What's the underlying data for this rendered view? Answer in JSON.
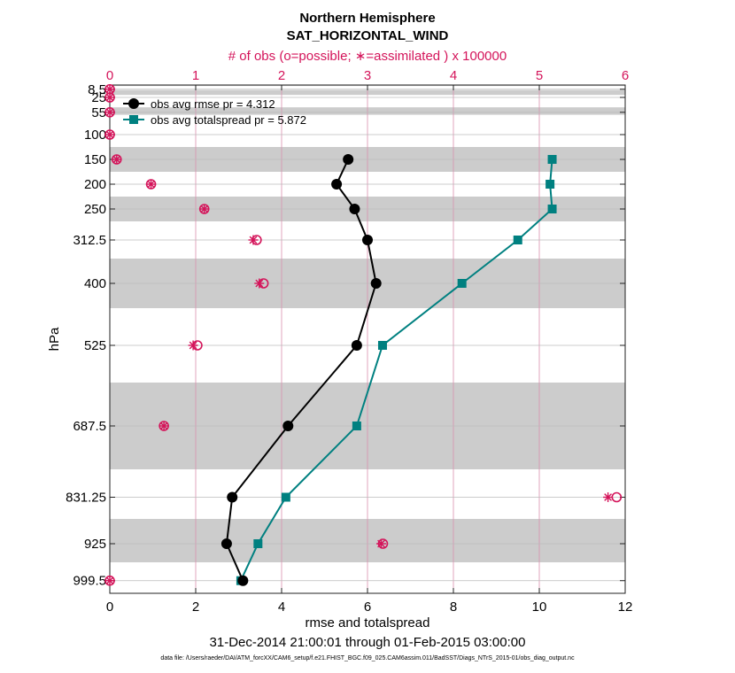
{
  "colors": {
    "rmse": "#000000",
    "spread": "#008080",
    "obs": "#d4145a",
    "band": "#cccccc",
    "grid_v": "#d98fae",
    "grid_h": "#bbbbbb"
  },
  "chart_data": {
    "type": "line",
    "title": "Northern Hemisphere",
    "subtitle": "SAT_HORIZONTAL_WIND",
    "top_axis_label": "# of obs (o=possible; ∗=assimilated ) x 100000",
    "xlabel": "rmse and totalspread",
    "ylabel": "hPa",
    "date_range": "31-Dec-2014 21:00:01 through 01-Feb-2015 03:00:00",
    "file_note": "data file: /Users/raeder/DAI/ATM_forcXX/CAM6_setup/f.e21.FHIST_BGC.f09_025.CAM6assim.011/BadSST/Diags_NTrS_2015-01/obs_diag_output.nc",
    "xlim": [
      0,
      12
    ],
    "x_ticks": [
      "0",
      "2",
      "4",
      "6",
      "8",
      "10",
      "12"
    ],
    "top_xlim": [
      0,
      6
    ],
    "top_ticks": [
      "0",
      "1",
      "2",
      "3",
      "4",
      "5",
      "6"
    ],
    "y_ticks": [
      "8.5",
      "25",
      "55",
      "100",
      "150",
      "200",
      "250",
      "312.5",
      "400",
      "525",
      "687.5",
      "831.25",
      "925",
      "999.5"
    ],
    "bands": [
      [
        0,
        2
      ],
      [
        10,
        20
      ],
      [
        45,
        60
      ],
      [
        125,
        175
      ],
      [
        225,
        275
      ],
      [
        350,
        450
      ],
      [
        600,
        775
      ],
      [
        875,
        962.5
      ]
    ],
    "levels": [
      150,
      200,
      250,
      312.5,
      400,
      525,
      687.5,
      831.25,
      925,
      999.5
    ],
    "series": [
      {
        "name": "rmse",
        "label": "obs avg rmse pr = 4.312",
        "values": [
          5.55,
          5.28,
          5.7,
          6.0,
          6.2,
          5.75,
          4.15,
          2.85,
          2.72,
          3.1
        ]
      },
      {
        "name": "totalspread",
        "label": "obs avg totalspread pr = 5.872",
        "values": [
          10.3,
          10.25,
          10.3,
          9.5,
          8.2,
          6.35,
          5.75,
          4.1,
          3.45,
          3.05
        ]
      }
    ],
    "obs_counts": {
      "levels": [
        8.5,
        25,
        55,
        100,
        150,
        200,
        250,
        312.5,
        400,
        525,
        687.5,
        831.25,
        925,
        999.5
      ],
      "possible": [
        0.0,
        0.0,
        0.0,
        0.0,
        0.08,
        0.48,
        1.1,
        1.71,
        1.79,
        1.02,
        0.63,
        5.9,
        3.18,
        0.0
      ],
      "assimilated": [
        0.0,
        0.0,
        0.0,
        0.0,
        0.08,
        0.48,
        1.1,
        1.67,
        1.74,
        0.97,
        0.63,
        5.8,
        3.16,
        0.0
      ]
    }
  }
}
